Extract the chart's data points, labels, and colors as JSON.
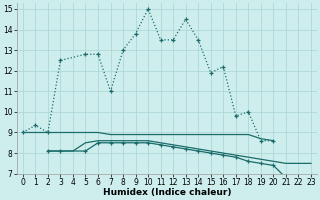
{
  "xlabel": "Humidex (Indice chaleur)",
  "background_color": "#ceeeed",
  "grid_color": "#aed8d6",
  "line_color": "#1a6b6b",
  "xlim": [
    -0.5,
    23.5
  ],
  "ylim": [
    7,
    15.3
  ],
  "xticks": [
    0,
    1,
    2,
    3,
    4,
    5,
    6,
    7,
    8,
    9,
    10,
    11,
    12,
    13,
    14,
    15,
    16,
    17,
    18,
    19,
    20,
    21,
    22,
    23
  ],
  "yticks": [
    7,
    8,
    9,
    10,
    11,
    12,
    13,
    14,
    15
  ],
  "series_arch": {
    "x": [
      0,
      1,
      2,
      3,
      5,
      6,
      7,
      8,
      9,
      10,
      11,
      12,
      13,
      14,
      15,
      16,
      17,
      18,
      19,
      20
    ],
    "y": [
      9.0,
      9.35,
      9.0,
      12.5,
      12.8,
      12.8,
      11.0,
      13.0,
      13.8,
      15.0,
      13.5,
      13.5,
      14.5,
      13.5,
      11.9,
      12.2,
      9.8,
      10.0,
      8.6,
      8.6
    ]
  },
  "series_flat_high": {
    "x": [
      0,
      1,
      2,
      3,
      4,
      5,
      6,
      7,
      8,
      9,
      10,
      11,
      12,
      13,
      14,
      15,
      16,
      17,
      18,
      19,
      20
    ],
    "y": [
      9.0,
      9.0,
      9.0,
      9.0,
      9.0,
      9.0,
      9.0,
      8.9,
      8.9,
      8.9,
      8.9,
      8.9,
      8.9,
      8.9,
      8.9,
      8.9,
      8.9,
      8.9,
      8.9,
      8.7,
      8.6
    ]
  },
  "series_flat_mid": {
    "x": [
      2,
      3,
      4,
      5,
      6,
      7,
      8,
      9,
      10,
      11,
      12,
      13,
      14,
      15,
      16,
      17,
      18,
      19,
      20,
      21,
      22,
      23
    ],
    "y": [
      8.1,
      8.1,
      8.1,
      8.5,
      8.6,
      8.6,
      8.6,
      8.6,
      8.6,
      8.5,
      8.4,
      8.3,
      8.2,
      8.1,
      8.0,
      7.9,
      7.8,
      7.7,
      7.6,
      7.5,
      7.5,
      7.5
    ]
  },
  "series_decline": {
    "x": [
      2,
      3,
      5,
      6,
      7,
      8,
      9,
      10,
      11,
      12,
      13,
      14,
      15,
      16,
      17,
      18,
      19,
      20,
      21,
      22,
      23
    ],
    "y": [
      8.1,
      8.1,
      8.1,
      8.5,
      8.5,
      8.5,
      8.5,
      8.5,
      8.4,
      8.3,
      8.2,
      8.1,
      8.0,
      7.9,
      7.8,
      7.6,
      7.5,
      7.4,
      6.8,
      6.8,
      6.8
    ]
  }
}
